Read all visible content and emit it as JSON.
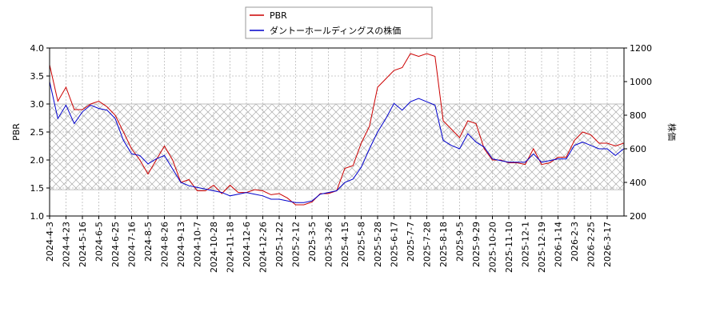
{
  "chart_data": {
    "type": "line",
    "categories": [
      "2024-4-3",
      null,
      "2024-4-23",
      null,
      "2024-5-16",
      null,
      "2024-6-5",
      null,
      "2024-6-25",
      null,
      "2024-7-16",
      null,
      "2024-8-5",
      null,
      "2024-8-26",
      null,
      "2024-9-13",
      null,
      "2024-10-7",
      null,
      "2024-10-28",
      null,
      "2024-11-18",
      null,
      "2024-12-6",
      null,
      "2024-12-26",
      null,
      "2025-1-22",
      null,
      "2025-2-12",
      null,
      "2025-3-5",
      null,
      "2025-3-26",
      null,
      "2025-4-15",
      null,
      "2025-5-8",
      null,
      "2025-5-28",
      null,
      "2025-6-17",
      null,
      "2025-7-7",
      null,
      "2025-7-28",
      null,
      "2025-8-18",
      null,
      "2025-9-5",
      null,
      "2025-9-29",
      null,
      "2025-10-20",
      null,
      "2025-11-10",
      null,
      "2025-12-1",
      null,
      "2025-12-19",
      null,
      "2026-1-14",
      null,
      "2026-2-3",
      null,
      "2026-2-25",
      null,
      "2026-3-17",
      null,
      null
    ],
    "series": [
      {
        "name": "PBR",
        "color": "#cc0000",
        "values": [
          3.7,
          3.05,
          3.3,
          2.9,
          2.9,
          3.0,
          3.05,
          2.95,
          2.8,
          2.5,
          2.2,
          2.0,
          1.75,
          2.0,
          2.25,
          2.0,
          1.6,
          1.65,
          1.45,
          1.45,
          1.55,
          1.4,
          1.55,
          1.42,
          1.42,
          1.47,
          1.45,
          1.38,
          1.4,
          1.32,
          1.2,
          1.2,
          1.25,
          1.4,
          1.4,
          1.45,
          1.85,
          1.9,
          2.3,
          2.6,
          3.3,
          3.45,
          3.6,
          3.65,
          3.9,
          3.85,
          3.9,
          3.85,
          2.7,
          2.55,
          2.4,
          2.7,
          2.65,
          2.2,
          2.0,
          2.0,
          1.95,
          1.95,
          1.92,
          2.2,
          1.92,
          1.95,
          2.05,
          2.05,
          2.35,
          2.5,
          2.45,
          2.3,
          2.3,
          2.25,
          2.3
        ]
      },
      {
        "name": "ダントーホールディングスの株価",
        "color": "#0000cc",
        "axis": "y2",
        "values": [
          1000,
          780,
          860,
          750,
          820,
          860,
          840,
          830,
          780,
          650,
          570,
          560,
          510,
          540,
          560,
          480,
          400,
          380,
          370,
          360,
          350,
          340,
          320,
          330,
          340,
          330,
          320,
          300,
          300,
          290,
          280,
          280,
          290,
          330,
          340,
          350,
          400,
          420,
          490,
          600,
          700,
          780,
          870,
          830,
          880,
          900,
          880,
          860,
          650,
          620,
          600,
          690,
          640,
          610,
          540,
          530,
          520,
          520,
          520,
          570,
          520,
          530,
          540,
          540,
          620,
          640,
          620,
          600,
          600,
          560,
          600
        ]
      }
    ],
    "ylabel": "PBR",
    "y2label": "株価",
    "ylim": [
      1.0,
      4.0
    ],
    "yticks": [
      {
        "value": 1,
        "label": "1.0"
      },
      {
        "value": 1.5,
        "label": "1.5"
      },
      {
        "value": 2,
        "label": "2.0"
      },
      {
        "value": 2.5,
        "label": "2.5"
      },
      {
        "value": 3,
        "label": "3.0"
      },
      {
        "value": 3.5,
        "label": "3.5"
      },
      {
        "value": 4,
        "label": "4.0"
      }
    ],
    "y2lim": [
      200,
      1200
    ],
    "y2ticks": [
      200,
      400,
      600,
      800,
      1000,
      1200
    ],
    "shaded_range": [
      1.47,
      3.0
    ],
    "grid": true,
    "legend": "top"
  }
}
